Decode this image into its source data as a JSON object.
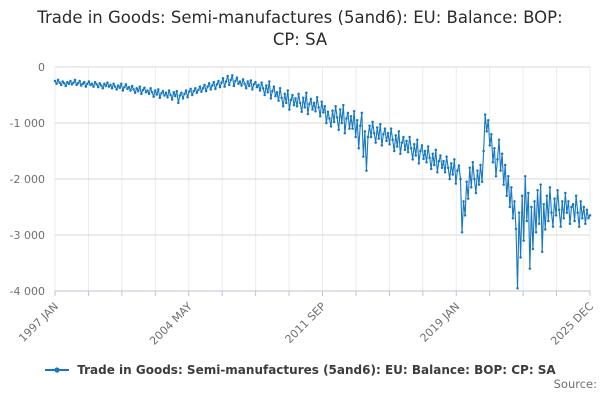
{
  "title": {
    "text": "Trade in Goods: Semi-manufactures (5and6): EU: Balance: BOP: CP: SA"
  },
  "source": {
    "label": "Source:"
  },
  "colors": {
    "series_blue": "#1678be",
    "grid_horizontal": "#d9d9d9",
    "grid_vertical": "#ececec",
    "axis_line": "#b9c5cf",
    "axis_text": "#6f6f6f",
    "title_text": "#2b2b2b",
    "legend_text": "#3c3c3c"
  },
  "chart_data": {
    "type": "line",
    "title": "Trade in Goods: Semi-manufactures (5and6): EU: Balance: BOP: CP: SA",
    "frequency": "monthly",
    "x_start": "1997 JAN",
    "x_end": "2025 DEC",
    "x_tick_labels": [
      "1997 JAN",
      "2004 MAY",
      "2011 SEP",
      "2019 JAN",
      "2025 DEC"
    ],
    "x_tick_count": 17,
    "x_label_every": 4,
    "y_tick_labels": [
      "0",
      "-1 000",
      "-2 000",
      "-3 000",
      "-4 000"
    ],
    "y_tick_values": [
      0,
      -1000,
      -2000,
      -3000,
      -4000
    ],
    "ylim": [
      -4000,
      0
    ],
    "grid": true,
    "legend_position": "bottom",
    "series": [
      {
        "name": "Trade in Goods: Semi-manufactures (5and6): EU: Balance: BOP: CP: SA",
        "color": "#1678be",
        "marker": "circle",
        "values": [
          -250,
          -300,
          -230,
          -280,
          -320,
          -260,
          -290,
          -340,
          -270,
          -300,
          -250,
          -310,
          -280,
          -230,
          -320,
          -290,
          -250,
          -330,
          -300,
          -270,
          -350,
          -300,
          -260,
          -320,
          -300,
          -350,
          -270,
          -310,
          -360,
          -290,
          -330,
          -380,
          -300,
          -340,
          -280,
          -350,
          -320,
          -380,
          -300,
          -350,
          -400,
          -330,
          -370,
          -300,
          -420,
          -360,
          -310,
          -390,
          -360,
          -420,
          -340,
          -400,
          -460,
          -380,
          -430,
          -350,
          -480,
          -410,
          -370,
          -450,
          -420,
          -480,
          -380,
          -450,
          -530,
          -420,
          -490,
          -400,
          -550,
          -470,
          -430,
          -510,
          -460,
          -540,
          -420,
          -500,
          -580,
          -450,
          -520,
          -430,
          -640,
          -510,
          -460,
          -560,
          -480,
          -420,
          -540,
          -440,
          -390,
          -500,
          -430,
          -380,
          -460,
          -410,
          -350,
          -440,
          -380,
          -320,
          -430,
          -350,
          -290,
          -400,
          -330,
          -270,
          -390,
          -310,
          -250,
          -360,
          -280,
          -200,
          -350,
          -260,
          -160,
          -320,
          -230,
          -150,
          -340,
          -250,
          -190,
          -300,
          -260,
          -330,
          -220,
          -300,
          -380,
          -260,
          -340,
          -240,
          -400,
          -310,
          -270,
          -360,
          -320,
          -420,
          -280,
          -380,
          -500,
          -330,
          -450,
          -260,
          -560,
          -430,
          -350,
          -520,
          -450,
          -600,
          -380,
          -550,
          -700,
          -480,
          -640,
          -420,
          -760,
          -590,
          -500,
          -680,
          -560,
          -700,
          -480,
          -640,
          -800,
          -550,
          -720,
          -460,
          -840,
          -660,
          -570,
          -760,
          -640,
          -790,
          -540,
          -720,
          -880,
          -620,
          -810,
          -700,
          -1000,
          -800,
          -920,
          -1060,
          -780,
          -980,
          -700,
          -900,
          -1120,
          -760,
          -1000,
          -680,
          -1180,
          -920,
          -820,
          -1100,
          -880,
          -1100,
          -790,
          -1250,
          -950,
          -1450,
          -1050,
          -820,
          -1600,
          -1150,
          -1850,
          -1250,
          -1050,
          -1250,
          -980,
          -1180,
          -1350,
          -1080,
          -1280,
          -1020,
          -1400,
          -1200,
          -1100,
          -1320,
          -1180,
          -1380,
          -1100,
          -1300,
          -1500,
          -1220,
          -1420,
          -1150,
          -1550,
          -1350,
          -1250,
          -1480,
          -1320,
          -1520,
          -1250,
          -1450,
          -1650,
          -1380,
          -1580,
          -1300,
          -1720,
          -1500,
          -1400,
          -1640,
          -1500,
          -1700,
          -1420,
          -1620,
          -1820,
          -1550,
          -1750,
          -1480,
          -1880,
          -1680,
          -1580,
          -1800,
          -1680,
          -1880,
          -1600,
          -1800,
          -2000,
          -1720,
          -1920,
          -1650,
          -2080,
          -1850,
          -1760,
          -2000,
          -2950,
          -2400,
          -2650,
          -2050,
          -2350,
          -1800,
          -2150,
          -1700,
          -2000,
          -2250,
          -1850,
          -2100,
          -1750,
          -2050,
          -1500,
          -850,
          -1150,
          -950,
          -1400,
          -1200,
          -1700,
          -1450,
          -1950,
          -1650,
          -1300,
          -1850,
          -1550,
          -2100,
          -1750,
          -2300,
          -1950,
          -2500,
          -2150,
          -2700,
          -2400,
          -2890,
          -3950,
          -2600,
          -3400,
          -2300,
          -3100,
          -1950,
          -2750,
          -2250,
          -3600,
          -2500,
          -3250,
          -2400,
          -2950,
          -2200,
          -2800,
          -2100,
          -3300,
          -2450,
          -2900,
          -2300,
          -2750,
          -2150,
          -2600,
          -2850,
          -2350,
          -2650,
          -2200,
          -2550,
          -2850,
          -2400,
          -2700,
          -2250,
          -2600,
          -2400,
          -2800,
          -2500,
          -2450,
          -2750,
          -2300,
          -2600,
          -2850,
          -2400,
          -2700,
          -2500,
          -2800,
          -2550,
          -2700,
          -2650
        ]
      }
    ]
  }
}
